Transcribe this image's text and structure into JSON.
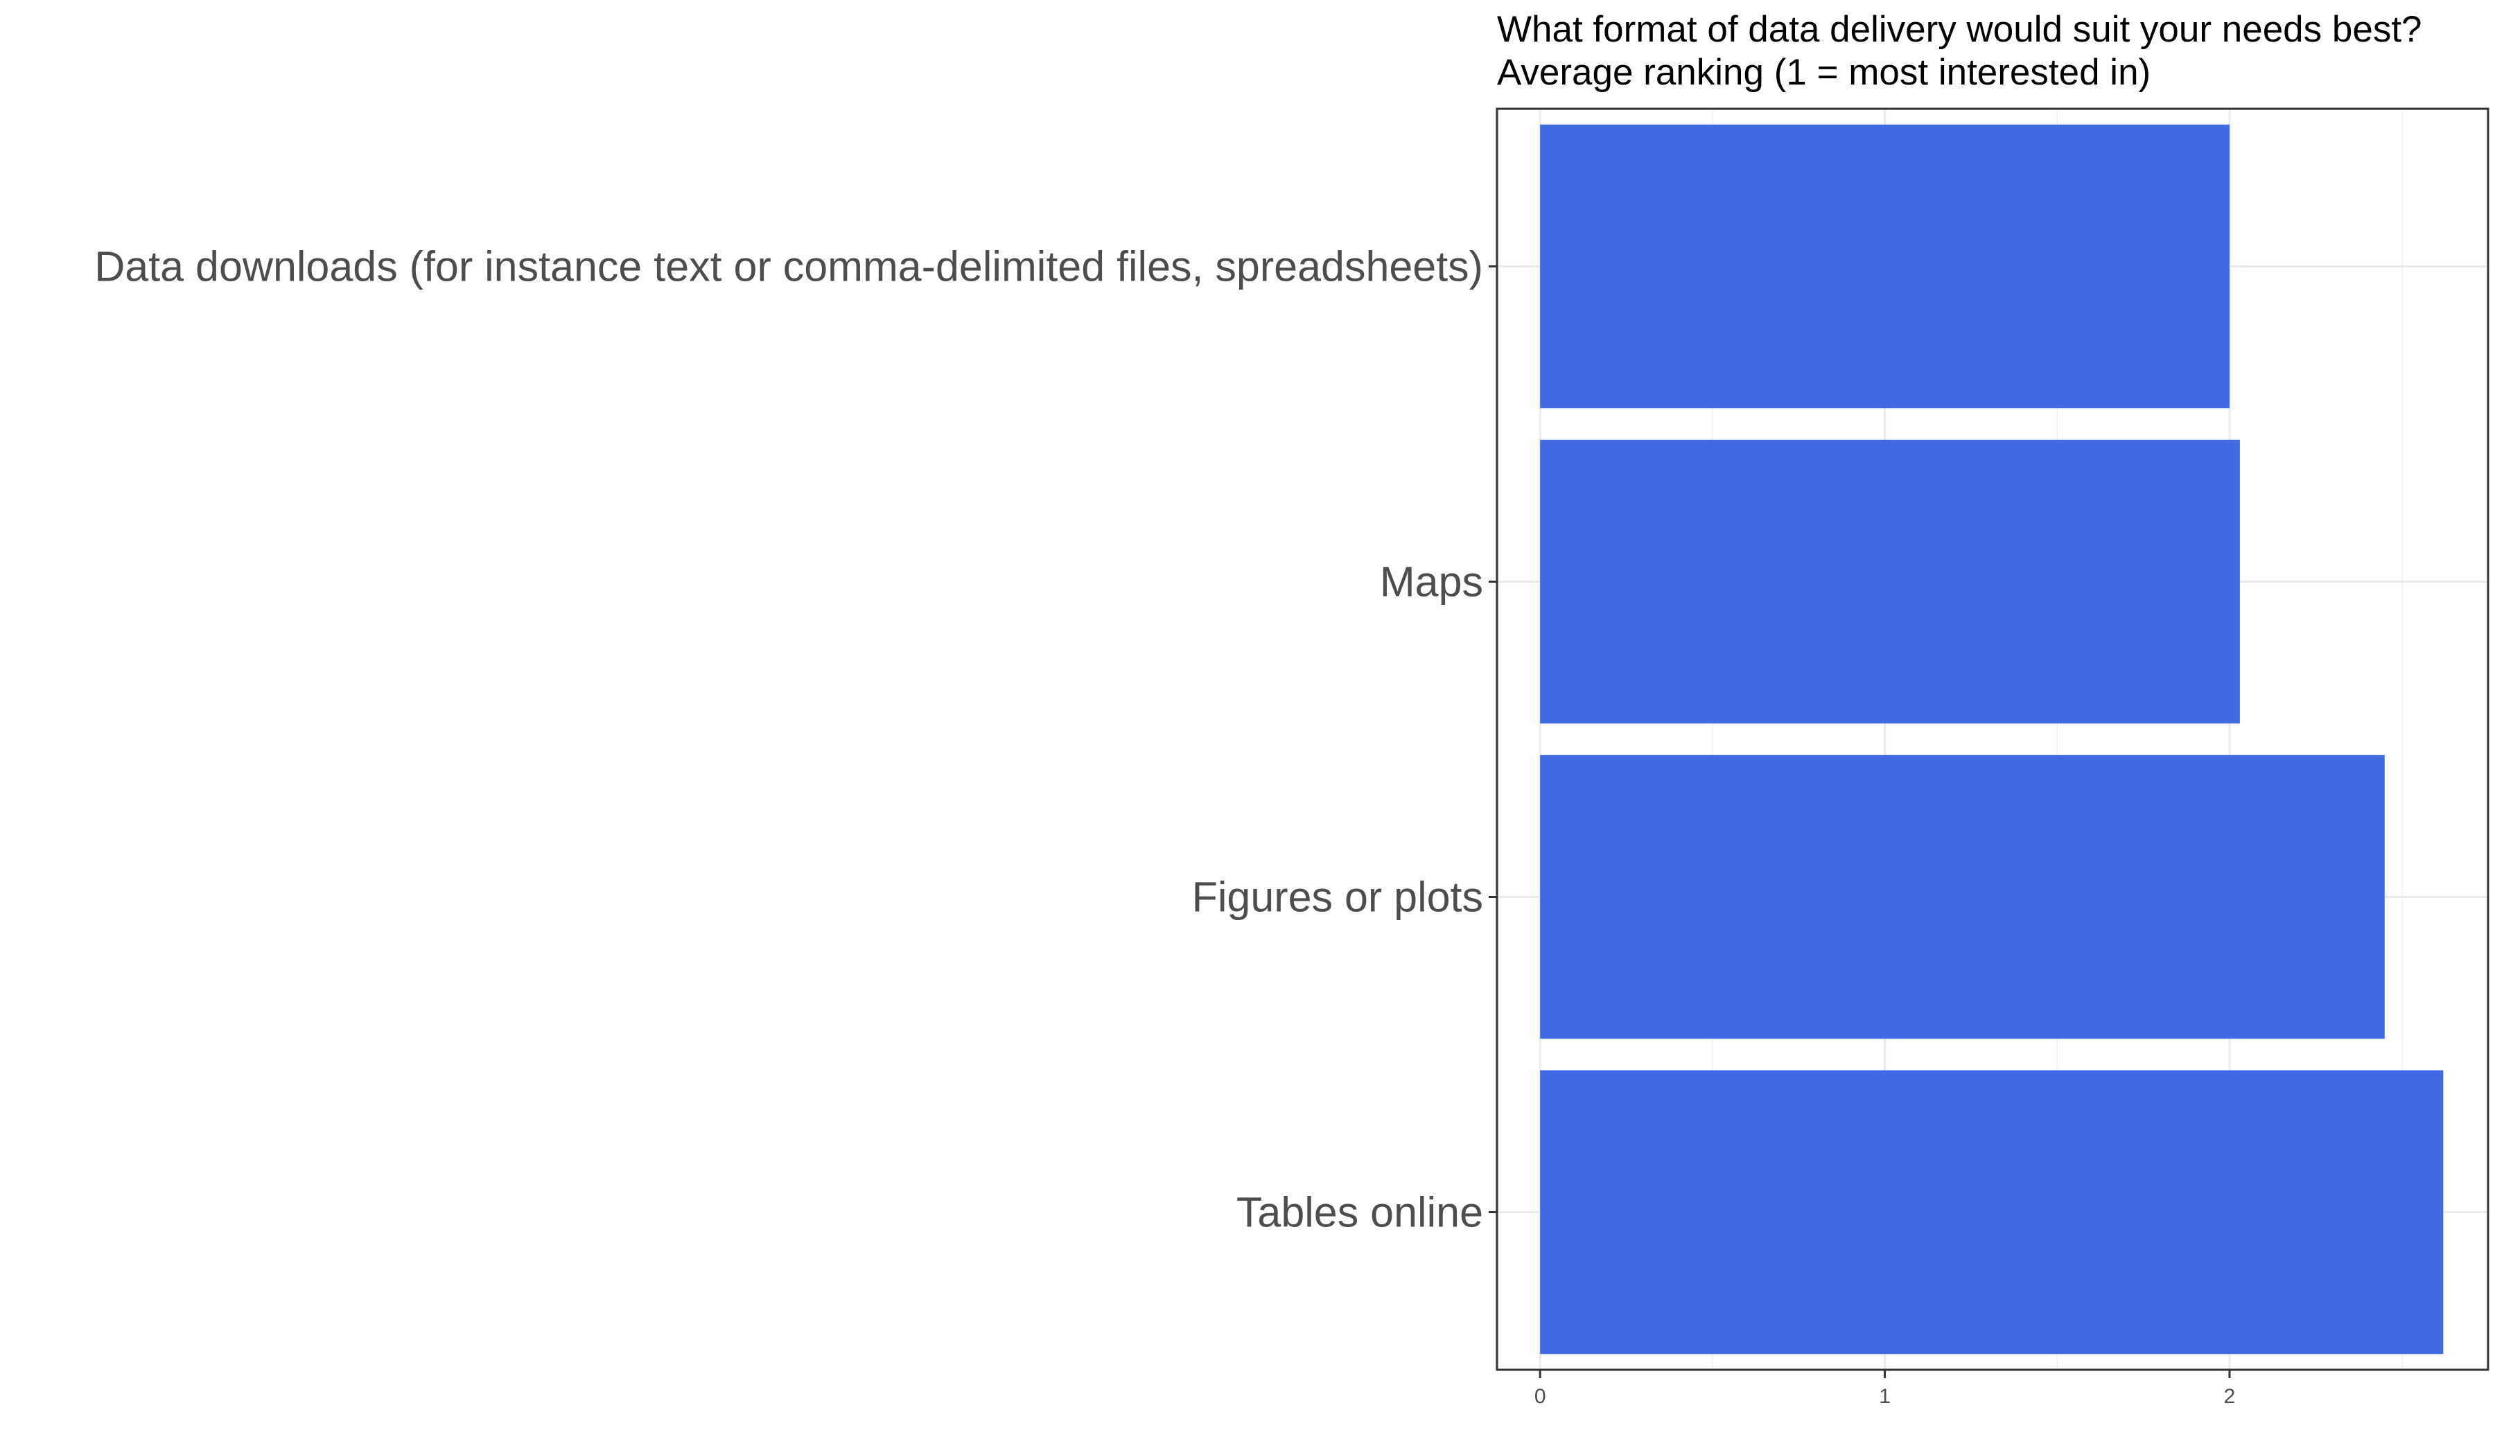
{
  "chart_data": {
    "type": "bar",
    "orientation": "horizontal",
    "title": "What format of data delivery would suit your needs best?",
    "subtitle": "Average ranking (1 = most interested in)",
    "categories": [
      "Data downloads (for instance text or comma-delimited files, spreadsheets)",
      "Maps",
      "Figures or plots",
      "Tables online"
    ],
    "values": [
      2.0,
      2.03,
      2.45,
      2.62
    ],
    "xlabel": "",
    "ylabel": "",
    "xlim": [
      -0.125,
      2.75
    ],
    "x_ticks": [
      "0",
      "1",
      "2"
    ],
    "grid": true,
    "legend": "none",
    "bar_color": "#4169E1"
  }
}
